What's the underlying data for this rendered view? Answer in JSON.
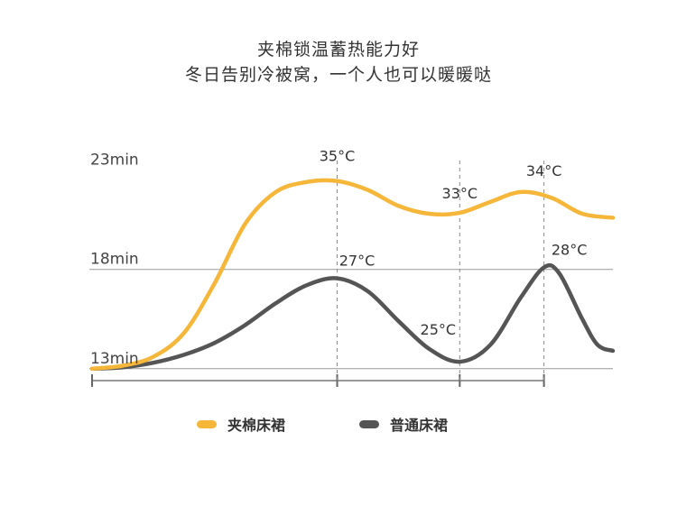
{
  "title_line1": "夹棉锁温蓄热能力好",
  "title_line2": "冬日告别冷被窝，一个人也可以暖暖哒",
  "chart_data": {
    "type": "line",
    "y_tick_labels": [
      "23min",
      "18min",
      "13min"
    ],
    "y_values": [
      23,
      18,
      13
    ],
    "series": [
      {
        "name": "夹棉床裙",
        "color": "#F5B63A",
        "points": [
          [
            0,
            13
          ],
          [
            0.8,
            13.15
          ],
          [
            1.6,
            13.6
          ],
          [
            2.4,
            14.8
          ],
          [
            3.2,
            17.3
          ],
          [
            4.0,
            20.3
          ],
          [
            4.8,
            21.9
          ],
          [
            5.6,
            22.4
          ],
          [
            6.4,
            22.45
          ],
          [
            7.2,
            22.0
          ],
          [
            8.0,
            21.2
          ],
          [
            8.8,
            20.8
          ],
          [
            9.6,
            20.85
          ],
          [
            10.4,
            21.4
          ],
          [
            11.2,
            21.9
          ],
          [
            12.0,
            21.6
          ],
          [
            12.8,
            20.8
          ],
          [
            13.6,
            20.6
          ]
        ],
        "peaks": [
          {
            "label": "35°C",
            "x": 6.4,
            "y": 22.45
          },
          {
            "label": "33°C",
            "x": 9.6,
            "y": 20.85
          },
          {
            "label": "34°C",
            "x": 11.8,
            "y": 21.9
          }
        ]
      },
      {
        "name": "普通床裙",
        "color": "#555555",
        "points": [
          [
            0,
            13
          ],
          [
            0.8,
            13.07
          ],
          [
            1.6,
            13.3
          ],
          [
            2.4,
            13.7
          ],
          [
            3.2,
            14.3
          ],
          [
            4.0,
            15.2
          ],
          [
            4.8,
            16.3
          ],
          [
            5.6,
            17.2
          ],
          [
            6.4,
            17.55
          ],
          [
            7.2,
            16.9
          ],
          [
            8.0,
            15.4
          ],
          [
            8.8,
            14.0
          ],
          [
            9.6,
            13.35
          ],
          [
            10.4,
            14.2
          ],
          [
            11.2,
            16.6
          ],
          [
            11.8,
            18.1
          ],
          [
            12.2,
            17.8
          ],
          [
            12.8,
            15.5
          ],
          [
            13.2,
            14.2
          ],
          [
            13.6,
            13.9
          ]
        ],
        "peaks": [
          {
            "label": "27°C",
            "x": 6.4,
            "y": 17.55
          },
          {
            "label": "25°C",
            "x": 9.6,
            "y": 13.35
          },
          {
            "label": "28°C",
            "x": 11.8,
            "y": 18.1
          }
        ]
      }
    ],
    "reference_x": [
      6.4,
      9.6,
      11.8
    ],
    "x_ticks": [
      0,
      6.4,
      9.6,
      11.8
    ],
    "xlim": [
      0,
      13.6
    ],
    "ylim": [
      12.4,
      23.3
    ],
    "grid": "horizontal lines at 18 and 13",
    "legend": "bottom-center"
  },
  "legend": {
    "item1": "夹棉床裙",
    "item2": "普通床裙"
  }
}
